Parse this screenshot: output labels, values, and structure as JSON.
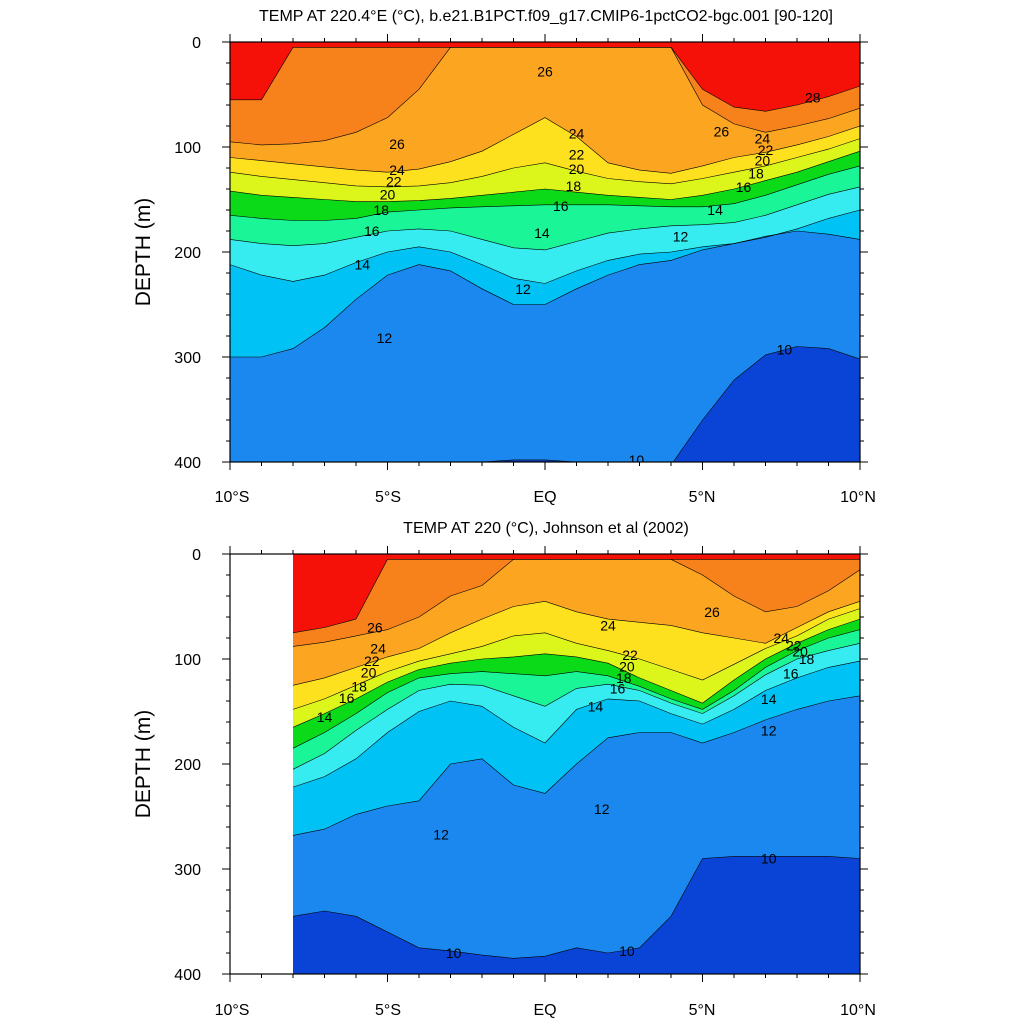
{
  "chart_data": [
    {
      "type": "contour",
      "title": "TEMP AT 220.4°E (°C), b.e21.B1PCT.f09_g17.CMIP6-1pctCO2-bgc.001 [90-120]",
      "ylabel": "DEPTH (m)",
      "xlabel": "",
      "x_ticks": [
        "10°S",
        "5°S",
        "EQ",
        "5°N",
        "10°N"
      ],
      "y_ticks": [
        "0",
        "100",
        "200",
        "300",
        "400"
      ],
      "xlim": [
        -10,
        10
      ],
      "ylim": [
        0,
        400
      ],
      "y_reversed": true,
      "x_data_start": -10,
      "x": [
        -10,
        -9,
        -8,
        -7,
        -6,
        -5,
        -4,
        -3,
        -2,
        -1,
        0,
        1,
        2,
        3,
        4,
        5,
        6,
        7,
        8,
        9,
        10
      ],
      "isotherms": [
        {
          "t": 28,
          "depth": [
            55,
            55,
            5,
            5,
            5,
            5,
            5,
            5,
            5,
            5,
            5,
            5,
            5,
            5,
            5,
            45,
            62,
            66,
            60,
            52,
            42
          ]
        },
        {
          "t": 26,
          "depth": [
            95,
            98,
            97,
            94,
            86,
            72,
            45,
            5,
            5,
            5,
            5,
            5,
            5,
            5,
            5,
            60,
            78,
            86,
            80,
            73,
            63
          ]
        },
        {
          "t": 24,
          "depth": [
            110,
            113,
            116,
            119,
            122,
            124,
            121,
            114,
            104,
            88,
            72,
            90,
            115,
            122,
            125,
            118,
            110,
            105,
            98,
            90,
            80
          ]
        },
        {
          "t": 22,
          "depth": [
            124,
            128,
            131,
            134,
            137,
            138,
            137,
            134,
            128,
            120,
            115,
            123,
            130,
            133,
            135,
            130,
            124,
            118,
            110,
            102,
            92
          ]
        },
        {
          "t": 20,
          "depth": [
            142,
            146,
            148,
            150,
            152,
            152,
            151,
            149,
            146,
            143,
            140,
            143,
            146,
            148,
            150,
            146,
            140,
            132,
            124,
            114,
            104
          ]
        },
        {
          "t": 18,
          "depth": [
            165,
            168,
            170,
            170,
            168,
            162,
            160,
            158,
            157,
            156,
            155,
            155,
            155,
            156,
            157,
            157,
            154,
            146,
            136,
            126,
            118
          ]
        },
        {
          "t": 16,
          "depth": [
            188,
            192,
            194,
            192,
            186,
            180,
            178,
            180,
            188,
            196,
            198,
            190,
            182,
            178,
            175,
            174,
            172,
            165,
            155,
            145,
            138
          ]
        },
        {
          "t": 14,
          "depth": [
            212,
            222,
            228,
            222,
            210,
            200,
            195,
            200,
            212,
            225,
            230,
            218,
            208,
            202,
            200,
            195,
            192,
            186,
            178,
            168,
            160
          ]
        },
        {
          "t": 12,
          "depth": [
            300,
            300,
            292,
            272,
            245,
            222,
            212,
            218,
            235,
            250,
            250,
            235,
            222,
            212,
            208,
            198,
            192,
            185,
            180,
            183,
            188
          ]
        },
        {
          "t": 10,
          "depth": [
            405,
            405,
            405,
            405,
            405,
            405,
            405,
            405,
            400,
            398,
            398,
            400,
            405,
            405,
            405,
            360,
            322,
            298,
            290,
            292,
            302
          ]
        }
      ],
      "contour_labels": [
        {
          "text": "26",
          "x": 0.0,
          "y": 28
        },
        {
          "text": "28",
          "x": 8.5,
          "y": 53
        },
        {
          "text": "26",
          "x": -4.7,
          "y": 97
        },
        {
          "text": "26",
          "x": 5.6,
          "y": 85
        },
        {
          "text": "24",
          "x": 1.0,
          "y": 87
        },
        {
          "text": "24",
          "x": 6.9,
          "y": 92
        },
        {
          "text": "22",
          "x": 1.0,
          "y": 107
        },
        {
          "text": "22",
          "x": 7.0,
          "y": 103
        },
        {
          "text": "24",
          "x": -4.7,
          "y": 122
        },
        {
          "text": "20",
          "x": 1.0,
          "y": 121
        },
        {
          "text": "20",
          "x": 6.9,
          "y": 113
        },
        {
          "text": "22",
          "x": -4.8,
          "y": 133
        },
        {
          "text": "18",
          "x": 0.9,
          "y": 137
        },
        {
          "text": "18",
          "x": 6.7,
          "y": 125
        },
        {
          "text": "20",
          "x": -5.0,
          "y": 145
        },
        {
          "text": "16",
          "x": 6.3,
          "y": 138
        },
        {
          "text": "18",
          "x": -5.2,
          "y": 160
        },
        {
          "text": "16",
          "x": 0.5,
          "y": 156
        },
        {
          "text": "14",
          "x": 5.4,
          "y": 160
        },
        {
          "text": "16",
          "x": -5.5,
          "y": 180
        },
        {
          "text": "14",
          "x": -0.1,
          "y": 182
        },
        {
          "text": "12",
          "x": 4.3,
          "y": 185
        },
        {
          "text": "14",
          "x": -5.8,
          "y": 212
        },
        {
          "text": "12",
          "x": -0.7,
          "y": 235
        },
        {
          "text": "12",
          "x": -5.1,
          "y": 282
        },
        {
          "text": "10",
          "x": 7.6,
          "y": 293
        },
        {
          "text": "10",
          "x": 2.9,
          "y": 398
        }
      ]
    },
    {
      "type": "contour",
      "title": "TEMP AT 220 (°C), Johnson et al (2002)",
      "ylabel": "DEPTH (m)",
      "xlabel": "",
      "x_ticks": [
        "10°S",
        "5°S",
        "EQ",
        "5°N",
        "10°N"
      ],
      "y_ticks": [
        "0",
        "100",
        "200",
        "300",
        "400"
      ],
      "xlim": [
        -10,
        10
      ],
      "ylim": [
        0,
        400
      ],
      "y_reversed": true,
      "x_data_start": -8,
      "x": [
        -8,
        -7,
        -6,
        -5,
        -4,
        -3,
        -2,
        -1,
        0,
        1,
        2,
        3,
        4,
        5,
        6,
        7,
        8,
        9,
        10
      ],
      "isotherms": [
        {
          "t": 28,
          "depth": [
            75,
            70,
            62,
            5,
            5,
            5,
            5,
            5,
            5,
            5,
            5,
            5,
            5,
            5,
            5,
            5,
            5,
            5,
            5
          ]
        },
        {
          "t": 26,
          "depth": [
            88,
            84,
            78,
            72,
            60,
            40,
            30,
            5,
            5,
            5,
            5,
            5,
            5,
            20,
            40,
            55,
            50,
            35,
            15
          ]
        },
        {
          "t": 24,
          "depth": [
            125,
            118,
            108,
            98,
            90,
            75,
            62,
            50,
            45,
            55,
            62,
            65,
            68,
            75,
            80,
            85,
            70,
            55,
            45
          ]
        },
        {
          "t": 22,
          "depth": [
            148,
            138,
            125,
            112,
            102,
            95,
            88,
            78,
            75,
            85,
            92,
            100,
            110,
            120,
            105,
            90,
            78,
            62,
            52
          ]
        },
        {
          "t": 20,
          "depth": [
            165,
            152,
            138,
            122,
            110,
            104,
            100,
            98,
            95,
            98,
            104,
            118,
            130,
            142,
            120,
            100,
            85,
            72,
            62
          ]
        },
        {
          "t": 18,
          "depth": [
            185,
            170,
            152,
            132,
            118,
            114,
            112,
            114,
            116,
            112,
            116,
            126,
            138,
            148,
            130,
            108,
            92,
            80,
            72
          ]
        },
        {
          "t": 16,
          "depth": [
            205,
            190,
            168,
            148,
            130,
            124,
            125,
            135,
            145,
            128,
            124,
            130,
            142,
            152,
            135,
            115,
            100,
            92,
            85
          ]
        },
        {
          "t": 14,
          "depth": [
            222,
            212,
            195,
            170,
            150,
            140,
            145,
            165,
            180,
            148,
            138,
            140,
            152,
            162,
            148,
            130,
            118,
            108,
            102
          ]
        },
        {
          "t": 12,
          "depth": [
            268,
            262,
            248,
            240,
            235,
            200,
            195,
            220,
            228,
            200,
            175,
            170,
            170,
            180,
            170,
            158,
            148,
            140,
            135
          ]
        },
        {
          "t": 10,
          "depth": [
            345,
            340,
            345,
            360,
            375,
            378,
            382,
            385,
            383,
            375,
            380,
            375,
            345,
            290,
            288,
            288,
            288,
            288,
            290
          ]
        }
      ],
      "contour_labels": [
        {
          "text": "26",
          "x": -5.4,
          "y": 70
        },
        {
          "text": "24",
          "x": -5.3,
          "y": 90
        },
        {
          "text": "22",
          "x": -5.5,
          "y": 102
        },
        {
          "text": "20",
          "x": -5.6,
          "y": 113
        },
        {
          "text": "18",
          "x": -5.9,
          "y": 126
        },
        {
          "text": "16",
          "x": -6.3,
          "y": 137
        },
        {
          "text": "14",
          "x": -7.0,
          "y": 155
        },
        {
          "text": "24",
          "x": 2.0,
          "y": 68
        },
        {
          "text": "26",
          "x": 5.3,
          "y": 55
        },
        {
          "text": "22",
          "x": 2.7,
          "y": 96
        },
        {
          "text": "20",
          "x": 2.6,
          "y": 107
        },
        {
          "text": "18",
          "x": 2.5,
          "y": 118
        },
        {
          "text": "16",
          "x": 2.3,
          "y": 128
        },
        {
          "text": "14",
          "x": 1.6,
          "y": 145
        },
        {
          "text": "24",
          "x": 7.5,
          "y": 80
        },
        {
          "text": "22",
          "x": 7.9,
          "y": 87
        },
        {
          "text": "20",
          "x": 8.1,
          "y": 93
        },
        {
          "text": "18",
          "x": 8.3,
          "y": 100
        },
        {
          "text": "16",
          "x": 7.8,
          "y": 114
        },
        {
          "text": "14",
          "x": 7.1,
          "y": 138
        },
        {
          "text": "12",
          "x": 7.1,
          "y": 168
        },
        {
          "text": "12",
          "x": 1.8,
          "y": 243
        },
        {
          "text": "12",
          "x": -3.3,
          "y": 267
        },
        {
          "text": "10",
          "x": 7.1,
          "y": 290
        },
        {
          "text": "10",
          "x": -2.9,
          "y": 380
        },
        {
          "text": "10",
          "x": 2.6,
          "y": 378
        }
      ]
    }
  ],
  "colorscale": [
    {
      "lo": 0,
      "hi": 9,
      "color": "#0a44d6"
    },
    {
      "lo": 9,
      "hi": 10,
      "color": "#1b5fe6"
    },
    {
      "lo": 10,
      "hi": 11,
      "color": "#1a88ee"
    },
    {
      "lo": 11,
      "hi": 12,
      "color": "#1aa6f0"
    },
    {
      "lo": 12,
      "hi": 13,
      "color": "#00c2f5"
    },
    {
      "lo": 13,
      "hi": 14,
      "color": "#29d7f7"
    },
    {
      "lo": 14,
      "hi": 15,
      "color": "#36ecf0"
    },
    {
      "lo": 15,
      "hi": 16,
      "color": "#22f6c8"
    },
    {
      "lo": 16,
      "hi": 17,
      "color": "#1af598"
    },
    {
      "lo": 17,
      "hi": 18,
      "color": "#12e84c"
    },
    {
      "lo": 18,
      "hi": 19,
      "color": "#0ada18"
    },
    {
      "lo": 19,
      "hi": 20,
      "color": "#8cf01a"
    },
    {
      "lo": 20,
      "hi": 21,
      "color": "#dcf51a"
    },
    {
      "lo": 21,
      "hi": 22,
      "color": "#fcf71c"
    },
    {
      "lo": 22,
      "hi": 23,
      "color": "#fde11e"
    },
    {
      "lo": 23,
      "hi": 24,
      "color": "#fcc71f"
    },
    {
      "lo": 24,
      "hi": 25,
      "color": "#fba521"
    },
    {
      "lo": 25,
      "hi": 26,
      "color": "#f98a1e"
    },
    {
      "lo": 26,
      "hi": 27,
      "color": "#f7821c"
    },
    {
      "lo": 27,
      "hi": 28,
      "color": "#f44a10"
    },
    {
      "lo": 28,
      "hi": 30,
      "color": "#f51108"
    }
  ]
}
